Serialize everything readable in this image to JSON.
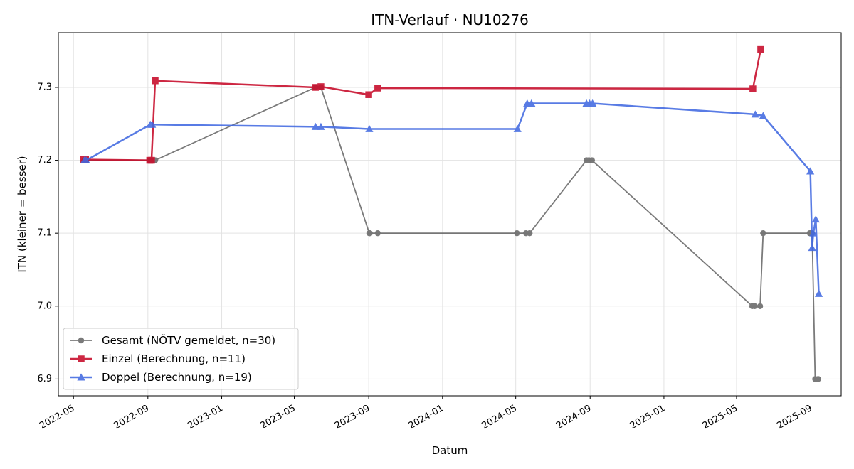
{
  "chart_data": {
    "type": "line",
    "title": "ITN-Verlauf · NU10276",
    "xlabel": "Datum",
    "ylabel": "ITN  (kleiner = besser)",
    "xlim": [
      "2022-04-06",
      "2025-10-21"
    ],
    "ylim": [
      6.877,
      7.375
    ],
    "grid": true,
    "legend_position": "lower-left",
    "x_ticks": [
      "2022-05",
      "2022-09",
      "2023-01",
      "2023-05",
      "2023-09",
      "2024-01",
      "2024-05",
      "2024-09",
      "2025-01",
      "2025-05",
      "2025-09"
    ],
    "y_ticks": [
      6.9,
      7.0,
      7.1,
      7.2,
      7.3
    ],
    "series": [
      {
        "name": "Gesamt (NÖTV gemeldet, n=30)",
        "color": "#555555",
        "marker": "circle",
        "points": [
          [
            "2022-05-19",
            7.2
          ],
          [
            "2022-05-22",
            7.2
          ],
          [
            "2022-09-04",
            7.2
          ],
          [
            "2022-09-07",
            7.2
          ],
          [
            "2022-09-13",
            7.2
          ],
          [
            "2023-06-05",
            7.3
          ],
          [
            "2023-06-14",
            7.3
          ],
          [
            "2023-09-02",
            7.1
          ],
          [
            "2023-09-03",
            7.1
          ],
          [
            "2023-09-16",
            7.1
          ],
          [
            "2024-05-03",
            7.1
          ],
          [
            "2024-05-18",
            7.1
          ],
          [
            "2024-05-24",
            7.1
          ],
          [
            "2024-08-26",
            7.2
          ],
          [
            "2024-08-30",
            7.2
          ],
          [
            "2024-09-04",
            7.2
          ],
          [
            "2025-05-27",
            7.0
          ],
          [
            "2025-05-31",
            7.0
          ],
          [
            "2025-06-09",
            7.0
          ],
          [
            "2025-06-14",
            7.1
          ],
          [
            "2025-08-30",
            7.1
          ],
          [
            "2025-09-01",
            7.1
          ],
          [
            "2025-09-03",
            7.1
          ],
          [
            "2025-09-08",
            6.9
          ],
          [
            "2025-09-13",
            6.9
          ]
        ]
      },
      {
        "name": "Einzel (Berechnung, n=11)",
        "color": "#c8102e",
        "marker": "square",
        "points": [
          [
            "2022-05-17",
            7.201
          ],
          [
            "2022-05-21",
            7.201
          ],
          [
            "2022-09-04",
            7.2
          ],
          [
            "2022-09-07",
            7.2
          ],
          [
            "2022-09-13",
            7.309
          ],
          [
            "2023-06-05",
            7.3
          ],
          [
            "2023-06-14",
            7.301
          ],
          [
            "2023-09-01",
            7.29
          ],
          [
            "2023-09-16",
            7.299
          ],
          [
            "2025-05-28",
            7.298
          ],
          [
            "2025-06-10",
            7.352
          ]
        ]
      },
      {
        "name": "Doppel (Berechnung, n=19)",
        "color": "#4169e1",
        "marker": "triangle",
        "points": [
          [
            "2022-05-19",
            7.2
          ],
          [
            "2022-05-22",
            7.2
          ],
          [
            "2022-09-05",
            7.249
          ],
          [
            "2022-09-08",
            7.249
          ],
          [
            "2023-06-05",
            7.246
          ],
          [
            "2023-06-14",
            7.246
          ],
          [
            "2023-09-02",
            7.243
          ],
          [
            "2024-05-04",
            7.243
          ],
          [
            "2024-05-20",
            7.278
          ],
          [
            "2024-05-27",
            7.278
          ],
          [
            "2024-08-26",
            7.278
          ],
          [
            "2024-08-31",
            7.278
          ],
          [
            "2024-09-05",
            7.278
          ],
          [
            "2025-06-01",
            7.263
          ],
          [
            "2025-06-14",
            7.261
          ],
          [
            "2025-08-31",
            7.185
          ],
          [
            "2025-09-03",
            7.08
          ],
          [
            "2025-09-05",
            7.1
          ],
          [
            "2025-09-09",
            7.119
          ],
          [
            "2025-09-14",
            7.017
          ]
        ]
      }
    ]
  }
}
